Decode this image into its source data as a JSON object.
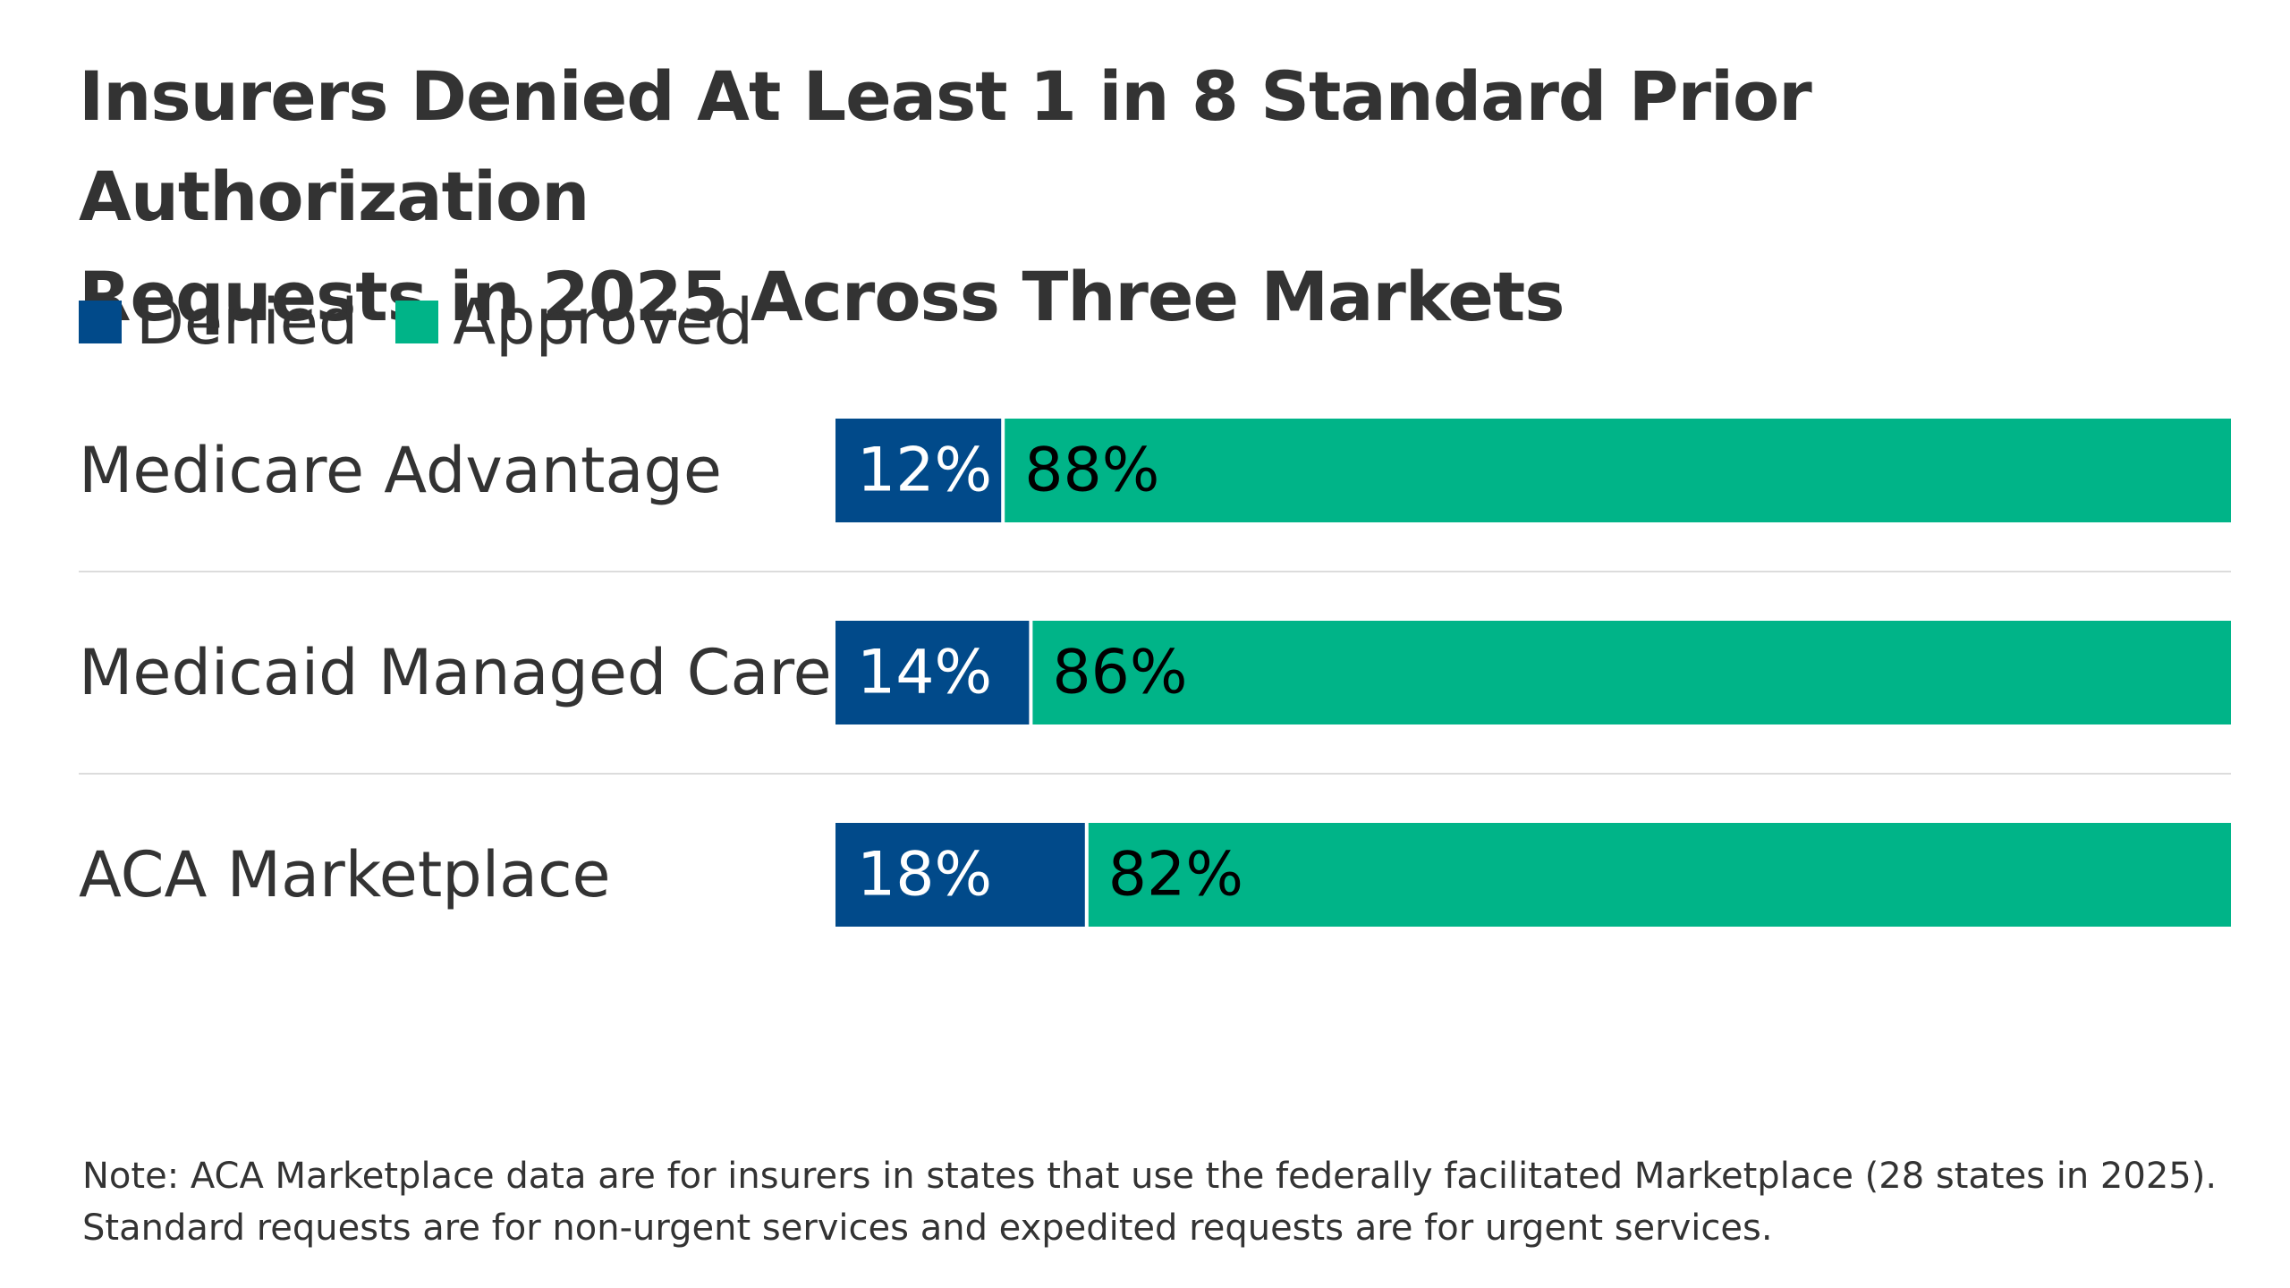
{
  "chart_data": {
    "type": "bar",
    "stacked": true,
    "orientation": "horizontal",
    "title": "Insurers Denied At Least 1 in 8 Standard Prior Authorization Requests in 2025 Across Three Markets",
    "title_lines": [
      "Insurers Denied At Least 1 in 8 Standard Prior Authorization",
      "Requests in 2025 Across Three Markets"
    ],
    "categories": [
      "Medicare Advantage",
      "Medicaid Managed Care",
      "ACA Marketplace"
    ],
    "series": [
      {
        "name": "Denied",
        "color": "#014a8a",
        "label_color": "#ffffff",
        "values": [
          12,
          14,
          18
        ],
        "labels": [
          "12%",
          "14%",
          "18%"
        ]
      },
      {
        "name": "Approved",
        "color": "#00b488",
        "label_color": "#000000",
        "values": [
          88,
          86,
          82
        ],
        "labels": [
          "88%",
          "86%",
          "82%"
        ]
      }
    ],
    "xlim": [
      0,
      100
    ],
    "legend_position": "top-left",
    "grid": false,
    "note_lines": [
      "Note: ACA Marketplace data are for insurers in states that use the federally facilitated Marketplace (28 states in 2025).",
      "Standard requests are for non-urgent services and expedited requests are for urgent services."
    ]
  }
}
